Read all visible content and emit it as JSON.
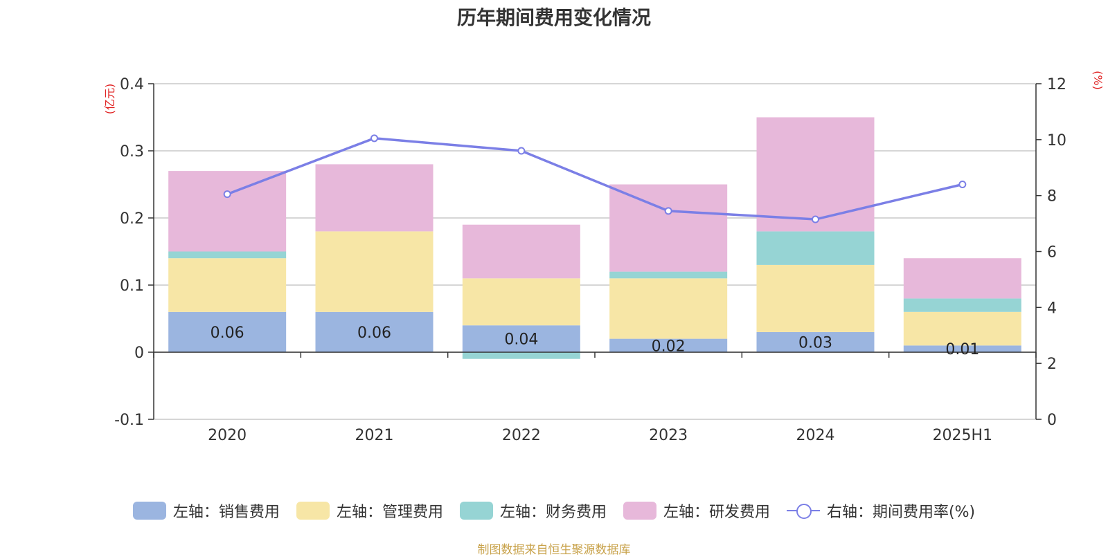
{
  "chart_data": {
    "type": "bar",
    "title": "历年期间费用变化情况",
    "categories": [
      "2020",
      "2021",
      "2022",
      "2023",
      "2024",
      "2025H1"
    ],
    "stacked": true,
    "left_axis": {
      "unit_label": "(亿元)",
      "range": [
        -0.1,
        0.4
      ],
      "ticks": [
        "0.4",
        "0.3",
        "0.2",
        "0.1",
        "0",
        "-0.1"
      ]
    },
    "right_axis": {
      "unit_label": "(%)",
      "range": [
        0,
        12
      ],
      "ticks": [
        "12",
        "10",
        "8",
        "6",
        "4",
        "2",
        "0"
      ]
    },
    "series": [
      {
        "name": "左轴：销售费用",
        "axis": "left",
        "type": "bar",
        "color": "#9bb5e0",
        "values": [
          0.06,
          0.06,
          0.04,
          0.02,
          0.03,
          0.01
        ],
        "labels": [
          "0.06",
          "0.06",
          "0.04",
          "0.02",
          "0.03",
          "0.01"
        ]
      },
      {
        "name": "左轴：管理费用",
        "axis": "left",
        "type": "bar",
        "color": "#f7e6a6",
        "values": [
          0.08,
          0.12,
          0.07,
          0.09,
          0.1,
          0.05
        ]
      },
      {
        "name": "左轴：财务费用",
        "axis": "left",
        "type": "bar",
        "color": "#96d4d4",
        "values": [
          0.01,
          0.0,
          -0.01,
          0.01,
          0.05,
          0.02
        ]
      },
      {
        "name": "左轴：研发费用",
        "axis": "left",
        "type": "bar",
        "color": "#e7b8da",
        "values": [
          0.12,
          0.1,
          0.08,
          0.13,
          0.17,
          0.06
        ]
      },
      {
        "name": "右轴：期间费用率(%)",
        "axis": "right",
        "type": "line",
        "color": "#7b7fe6",
        "values": [
          8.05,
          10.05,
          9.6,
          7.45,
          7.15,
          8.4
        ]
      }
    ],
    "grid": true,
    "legend_position": "bottom"
  },
  "footer": {
    "source": "制图数据来自恒生聚源数据库"
  }
}
